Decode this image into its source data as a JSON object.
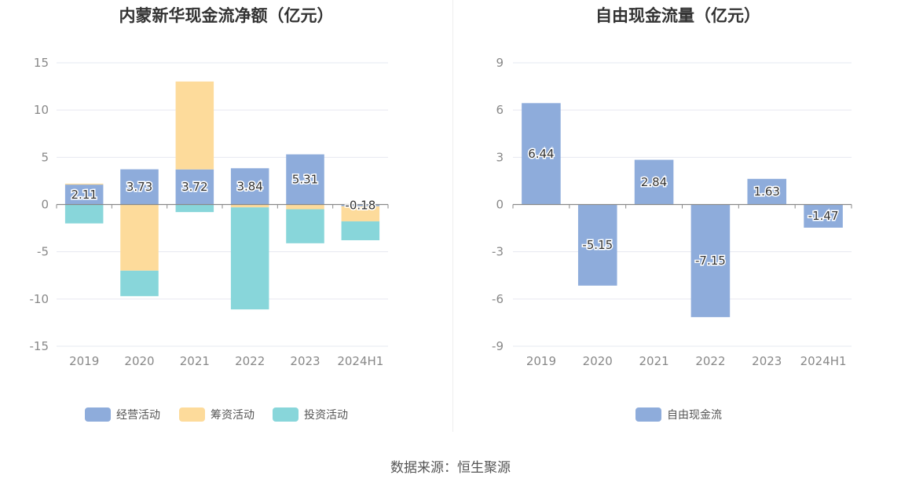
{
  "source_text": "数据来源：恒生聚源",
  "colors": {
    "operating": "#8eacdb",
    "financing": "#fddb9b",
    "investing": "#88d6da",
    "free_cash_flow": "#8eacdb"
  },
  "chart_data": [
    {
      "type": "bar",
      "stacked": true,
      "title": "内蒙新华现金流净额（亿元）",
      "categories": [
        "2019",
        "2020",
        "2021",
        "2022",
        "2023",
        "2024H1"
      ],
      "ylim": [
        -15,
        15
      ],
      "yticks": [
        15,
        10,
        5,
        0,
        -5,
        -10,
        -15
      ],
      "ytick_labels": [
        "15",
        "10",
        "5",
        "0",
        "-5",
        "-10",
        "-15"
      ],
      "legend_position": "bottom",
      "series": [
        {
          "name": "经营活动",
          "values": [
            2.11,
            3.73,
            3.72,
            3.84,
            5.31,
            -0.18
          ],
          "labels": [
            "2.11",
            "3.73",
            "3.72",
            "3.84",
            "5.31",
            "-0.18"
          ]
        },
        {
          "name": "筹资活动",
          "values": [
            0.1,
            -7.0,
            9.3,
            -0.3,
            -0.5,
            -1.6
          ]
        },
        {
          "name": "投资活动",
          "values": [
            -2.0,
            -2.7,
            -0.8,
            -10.8,
            -3.6,
            -2.0
          ]
        }
      ]
    },
    {
      "type": "bar",
      "title": "自由现金流量（亿元）",
      "categories": [
        "2019",
        "2020",
        "2021",
        "2022",
        "2023",
        "2024H1"
      ],
      "ylim": [
        -9,
        9
      ],
      "yticks": [
        9,
        6,
        3,
        0,
        -3,
        -6,
        -9
      ],
      "ytick_labels": [
        "9",
        "6",
        "3",
        "0",
        "-3",
        "-6",
        "-9"
      ],
      "legend_position": "bottom",
      "series": [
        {
          "name": "自由现金流",
          "values": [
            6.44,
            -5.15,
            2.84,
            -7.15,
            1.63,
            -1.47
          ],
          "labels": [
            "6.44",
            "-5.15",
            "2.84",
            "-7.15",
            "1.63",
            "-1.47"
          ]
        }
      ]
    }
  ]
}
